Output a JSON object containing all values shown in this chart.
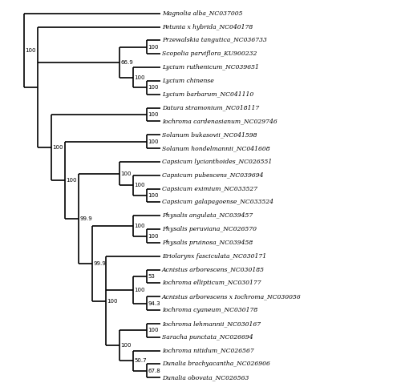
{
  "taxa": [
    "Magnolia alba_NC037005",
    "Petunia x hybrida_NC040178",
    "Przewalskia tangutica_NC036733",
    "Scopolia parviflora_KU900232",
    "Lycium ruthenicum_NC039651",
    "Lycium chinense",
    "Lycium barbarum_NC041110",
    "Datura stramonium_NC018117",
    "Iochroma cardenasianum_NC029746",
    "Solanum bukasovii_NC041598",
    "Solanum hondelmannii_NC041608",
    "Capsicum lycianthoides_NC026551",
    "Capsicum pubescens_NC039694",
    "Capsicum eximium_NC033527",
    "Capsicum galapagoense_NC033524",
    "Physalis angulata_NC039457",
    "Physalis peruviana_NC026570",
    "Physalis pruinosa_NC039458",
    "Eriolarynx fasciculata_NC030171",
    "Acnistus arborescens_NC030185",
    "Iochroma ellipticum_NC030177",
    "Acnistus arborescens x Iochroma_NC030056",
    "Iochroma cyaneum_NC030178",
    "Iochroma lehmannii_NC030167",
    "Saracha punctata_NC026694",
    "Iochroma nitidum_NC026567",
    "Dunalia brachyacantha_NC026906",
    "Dunalia obovata_NC026563"
  ],
  "fig_width": 5.0,
  "fig_height": 4.88,
  "dpi": 100,
  "line_width": 1.2,
  "font_size": 5.5,
  "bootstrap_font_size": 5.0
}
